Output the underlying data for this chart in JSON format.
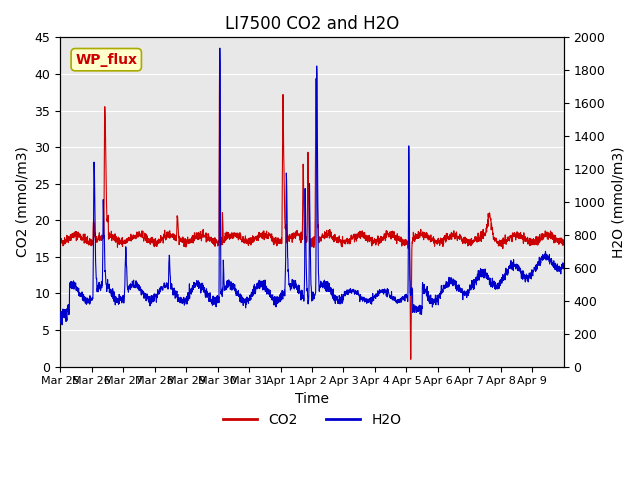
{
  "title": "LI7500 CO2 and H2O",
  "xlabel": "Time",
  "ylabel_left": "CO2 (mmol/m3)",
  "ylabel_right": "H2O (mmol/m3)",
  "ylim_left": [
    0,
    45
  ],
  "ylim_right": [
    0,
    2000
  ],
  "yticks_left": [
    0,
    5,
    10,
    15,
    20,
    25,
    30,
    35,
    40,
    45
  ],
  "yticks_right": [
    0,
    200,
    400,
    600,
    800,
    1000,
    1200,
    1400,
    1600,
    1800,
    2000
  ],
  "co2_color": "#cc0000",
  "h2o_color": "#0000cc",
  "background_color": "#ffffff",
  "plot_bg_color": "#e8e8e8",
  "grid_color": "#ffffff",
  "annotation_text": "WP_flux",
  "annotation_color": "#cc0000",
  "annotation_bg": "#ffffcc",
  "legend_co2": "CO2",
  "legend_h2o": "H2O",
  "title_fontsize": 12,
  "axis_fontsize": 10,
  "tick_fontsize": 9,
  "legend_fontsize": 10
}
